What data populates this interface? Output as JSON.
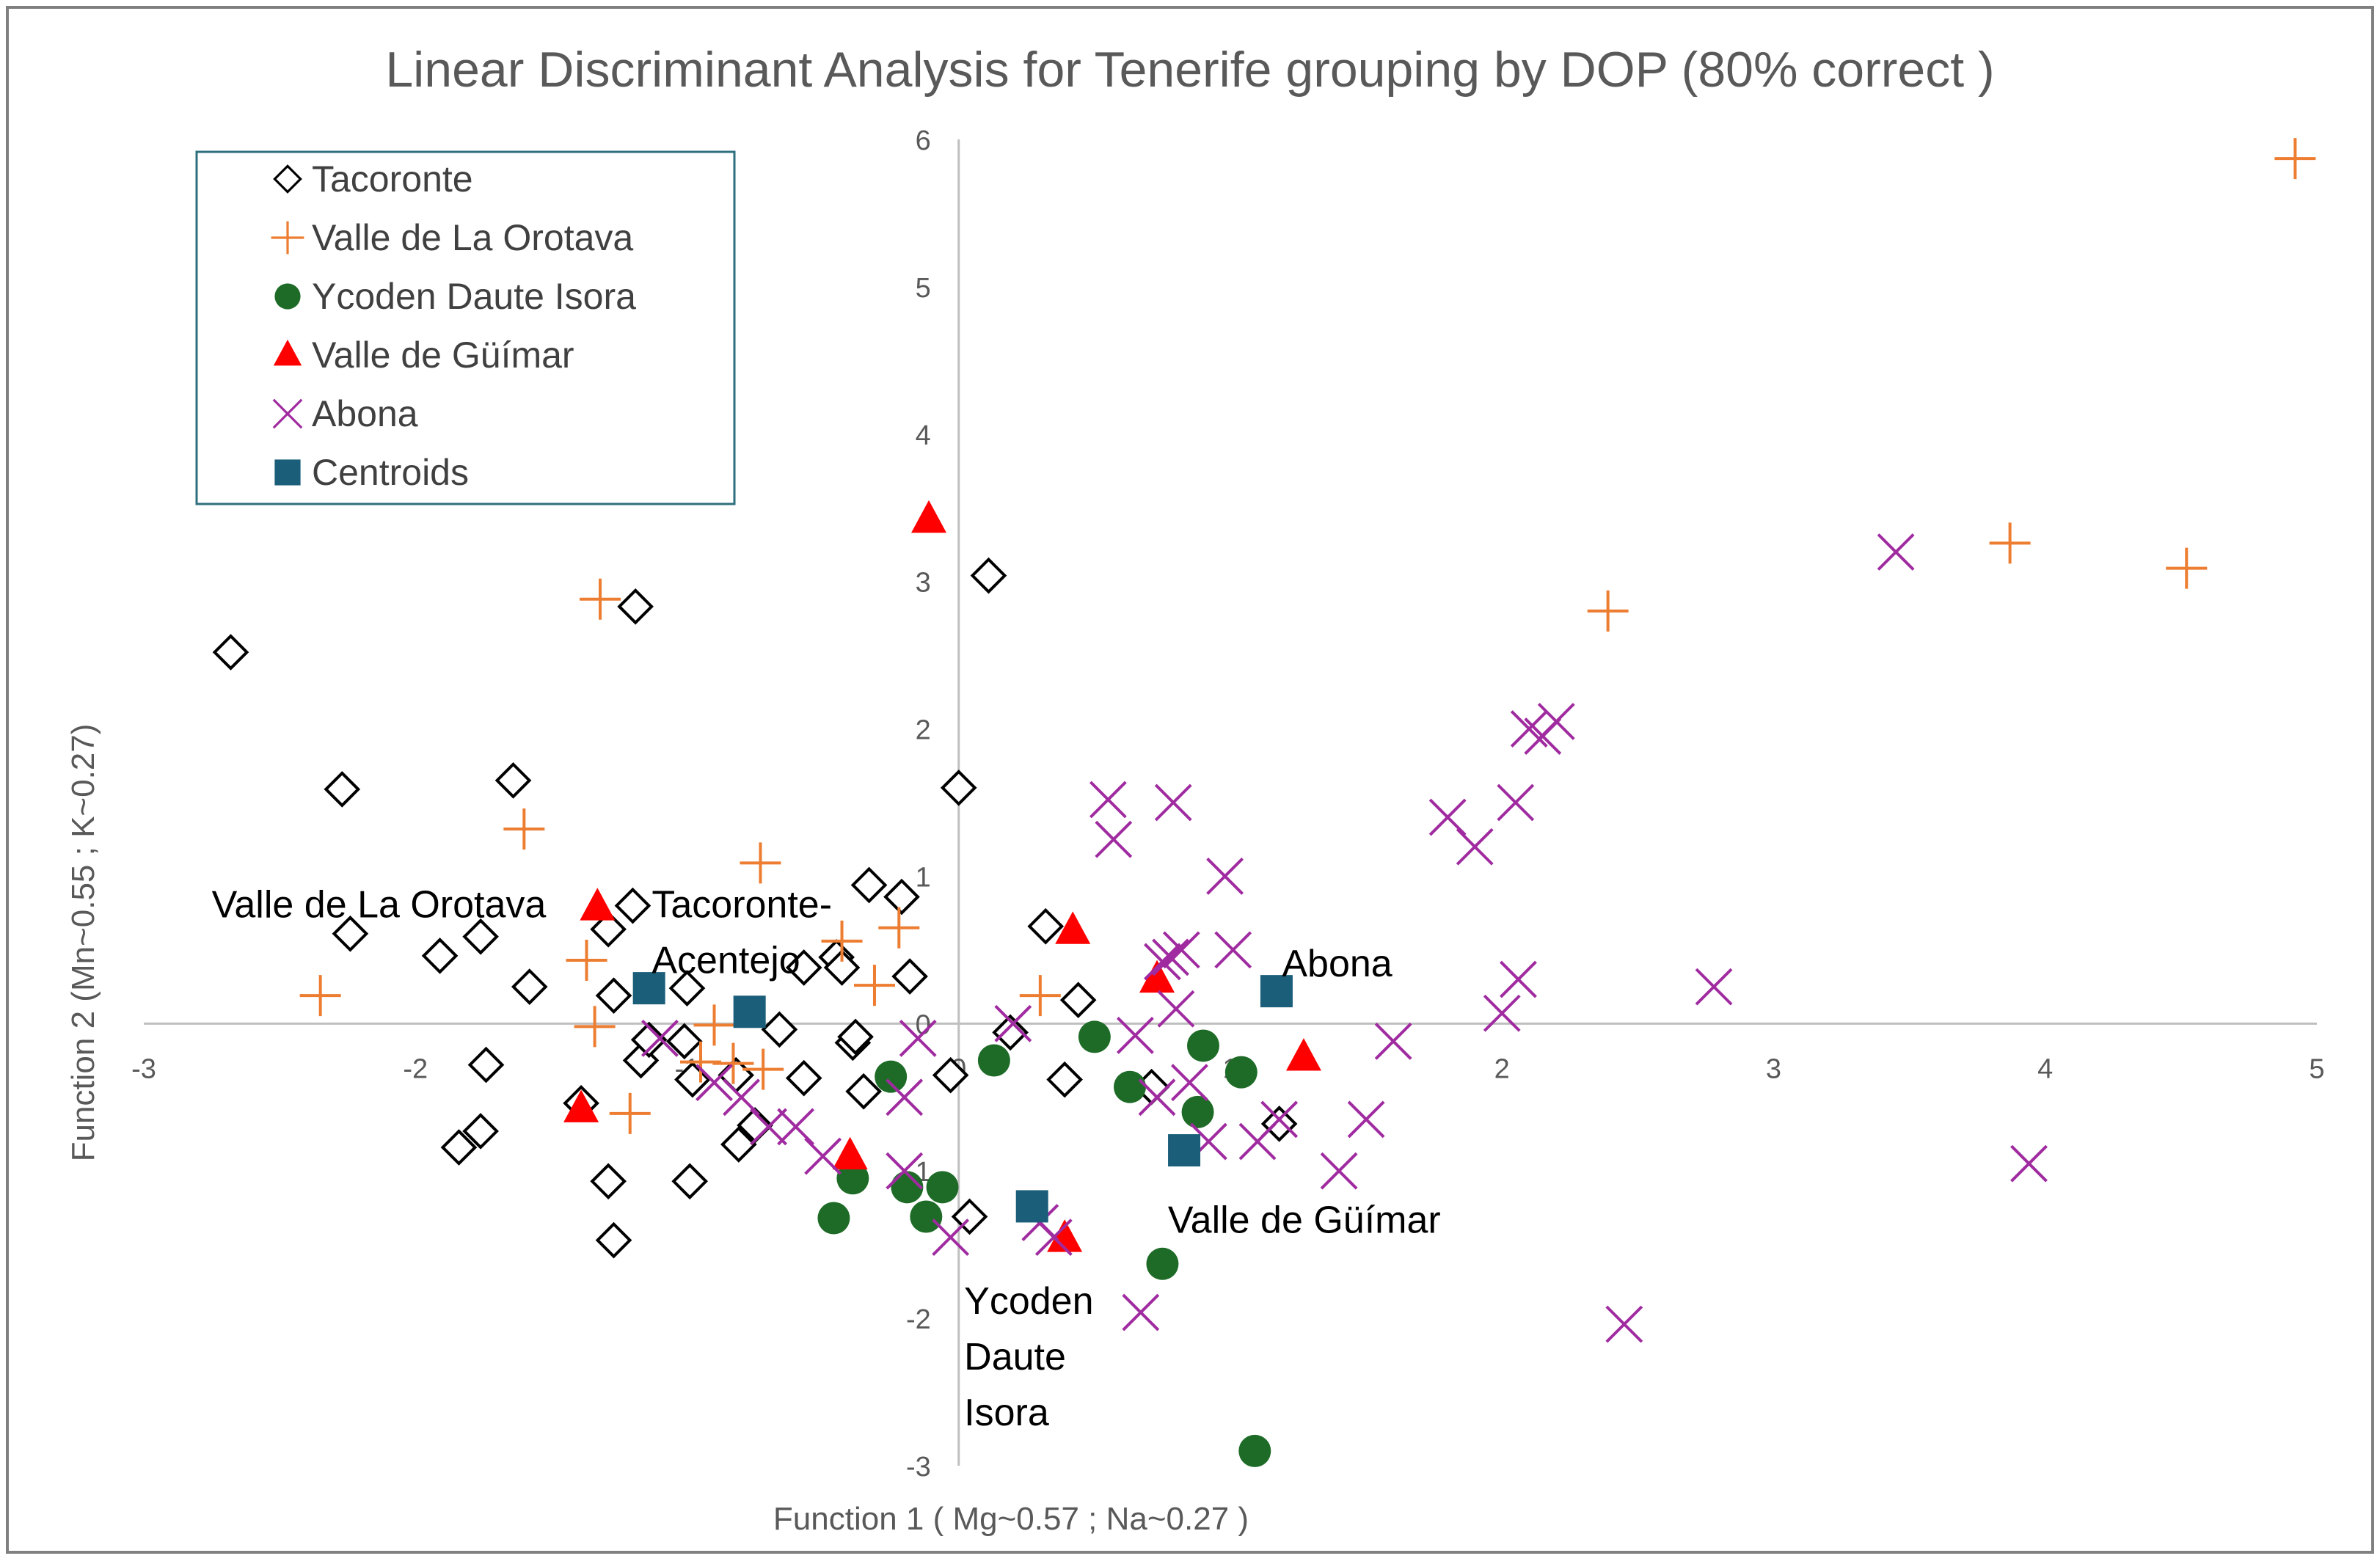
{
  "chart_data": {
    "type": "scatter",
    "title": "Linear Discriminant Analysis for Tenerife grouping by DOP (80% correct )",
    "xlabel": "Function 1   ( Mg~0.57 ; Na~0.27 )",
    "ylabel": "Function 2   (Mn~0.55 ;   K~0.27)",
    "xlim": [
      -3,
      5
    ],
    "ylim": [
      -3,
      6
    ],
    "x_ticks": [
      "-3",
      "-2",
      "-1",
      "0",
      "1",
      "2",
      "3",
      "4",
      "5"
    ],
    "y_ticks": [
      "-3",
      "-2",
      "-1",
      "0",
      "1",
      "2",
      "3",
      "4",
      "5",
      "6"
    ],
    "x_tick_values": [
      -3,
      -2,
      -1,
      0,
      1,
      2,
      3,
      4,
      5
    ],
    "y_tick_values": [
      -3,
      -2,
      -1,
      0,
      1,
      2,
      3,
      4,
      5,
      6
    ],
    "grid": false,
    "legend_position": "top-left",
    "colors": {
      "tacoronte": "#000000",
      "orotava": "#ED7D31",
      "ycoden": "#1E6B27",
      "guimar": "#FF0000",
      "abona": "#A02BA0",
      "centroids": "#1A5E7A",
      "legend_border": "#2E6F7E",
      "axis": "#BFBFBF",
      "frame": "#808080"
    },
    "series": [
      {
        "name": "Tacoronte",
        "marker": "diamond-open",
        "points": [
          [
            -2.68,
            2.52
          ],
          [
            -2.27,
            1.59
          ],
          [
            -2.24,
            0.61
          ],
          [
            -1.91,
            0.46
          ],
          [
            -1.76,
            0.59
          ],
          [
            -1.64,
            1.65
          ],
          [
            -1.58,
            0.25
          ],
          [
            -1.74,
            -0.28
          ],
          [
            -1.84,
            -0.84
          ],
          [
            -1.76,
            -0.73
          ],
          [
            -1.39,
            -0.54
          ],
          [
            -1.29,
            -1.07
          ],
          [
            -1.27,
            -1.47
          ],
          [
            -1.29,
            0.64
          ],
          [
            -1.2,
            0.8
          ],
          [
            -1.19,
            2.83
          ],
          [
            -1.27,
            0.19
          ],
          [
            -1.17,
            -0.25
          ],
          [
            -1.14,
            -0.11
          ],
          [
            -1.0,
            0.24
          ],
          [
            -1.01,
            -0.12
          ],
          [
            -0.98,
            -0.38
          ],
          [
            -0.99,
            -1.07
          ],
          [
            -0.82,
            -0.35
          ],
          [
            -0.81,
            -0.82
          ],
          [
            -0.75,
            -0.69
          ],
          [
            -0.66,
            -0.04
          ],
          [
            -0.57,
            -0.37
          ],
          [
            -0.57,
            0.38
          ],
          [
            -0.45,
            0.45
          ],
          [
            -0.43,
            0.38
          ],
          [
            -0.39,
            -0.13
          ],
          [
            -0.38,
            -0.09
          ],
          [
            -0.35,
            -0.46
          ],
          [
            -0.33,
            0.94
          ],
          [
            -0.21,
            0.86
          ],
          [
            -0.18,
            0.32
          ],
          [
            -0.03,
            -0.35
          ],
          [
            0.0,
            1.6
          ],
          [
            0.11,
            3.04
          ],
          [
            0.19,
            -0.06
          ],
          [
            0.32,
            0.66
          ],
          [
            0.44,
            0.16
          ],
          [
            0.39,
            -0.38
          ],
          [
            0.71,
            -0.43
          ],
          [
            1.18,
            -0.68
          ],
          [
            0.04,
            -1.31
          ]
        ]
      },
      {
        "name": "Valle de La Orotava",
        "marker": "plus",
        "points": [
          [
            -2.35,
            0.19
          ],
          [
            -1.6,
            1.32
          ],
          [
            -1.32,
            2.88
          ],
          [
            -1.37,
            0.43
          ],
          [
            -1.34,
            -0.02
          ],
          [
            -1.21,
            -0.61
          ],
          [
            -0.95,
            -0.26
          ],
          [
            -0.9,
            -0.01
          ],
          [
            -0.83,
            -0.27
          ],
          [
            -0.72,
            -0.31
          ],
          [
            -0.73,
            1.09
          ],
          [
            -0.43,
            0.56
          ],
          [
            -0.31,
            0.26
          ],
          [
            -0.22,
            0.65
          ],
          [
            0.3,
            0.19
          ],
          [
            2.39,
            2.8
          ],
          [
            3.87,
            3.26
          ],
          [
            4.52,
            3.09
          ],
          [
            4.92,
            5.87
          ]
        ]
      },
      {
        "name": "Ycoden Daute Isora",
        "marker": "circle-filled",
        "points": [
          [
            -0.46,
            -1.32
          ],
          [
            -0.39,
            -1.05
          ],
          [
            -0.25,
            -0.36
          ],
          [
            -0.19,
            -1.11
          ],
          [
            -0.12,
            -1.31
          ],
          [
            -0.06,
            -1.11
          ],
          [
            0.13,
            -0.25
          ],
          [
            0.5,
            -0.09
          ],
          [
            0.63,
            -0.43
          ],
          [
            0.75,
            -1.63
          ],
          [
            0.88,
            -0.6
          ],
          [
            0.9,
            -0.15
          ],
          [
            1.04,
            -0.33
          ],
          [
            1.09,
            -2.9
          ]
        ]
      },
      {
        "name": "Valle de Güímar",
        "marker": "triangle-filled",
        "points": [
          [
            -1.33,
            0.79
          ],
          [
            -1.39,
            -0.58
          ],
          [
            -0.4,
            -0.9
          ],
          [
            -0.11,
            3.42
          ],
          [
            0.39,
            -1.46
          ],
          [
            0.42,
            0.63
          ],
          [
            0.73,
            0.3
          ],
          [
            1.27,
            -0.23
          ]
        ]
      },
      {
        "name": "Abona",
        "marker": "x",
        "points": [
          [
            -1.1,
            -0.1
          ],
          [
            -0.9,
            -0.4
          ],
          [
            -0.8,
            -0.5
          ],
          [
            -0.7,
            -0.7
          ],
          [
            -0.6,
            -0.7
          ],
          [
            -0.5,
            -0.9
          ],
          [
            -0.2,
            -1.0
          ],
          [
            -0.2,
            -0.5
          ],
          [
            -0.15,
            -0.1
          ],
          [
            -0.03,
            -1.45
          ],
          [
            0.2,
            0.0
          ],
          [
            0.3,
            -1.35
          ],
          [
            0.35,
            -1.45
          ],
          [
            0.55,
            1.52
          ],
          [
            0.57,
            1.25
          ],
          [
            0.65,
            -0.08
          ],
          [
            0.67,
            -1.96
          ],
          [
            0.73,
            -0.5
          ],
          [
            0.75,
            0.42
          ],
          [
            0.78,
            0.45
          ],
          [
            0.8,
            0.1
          ],
          [
            0.79,
            1.5
          ],
          [
            0.82,
            0.5
          ],
          [
            0.85,
            -0.4
          ],
          [
            0.92,
            -0.8
          ],
          [
            0.98,
            1.0
          ],
          [
            1.01,
            0.5
          ],
          [
            1.1,
            -0.8
          ],
          [
            1.18,
            -0.65
          ],
          [
            1.4,
            -1.0
          ],
          [
            1.5,
            -0.65
          ],
          [
            1.6,
            -0.12
          ],
          [
            1.8,
            1.4
          ],
          [
            1.9,
            1.2
          ],
          [
            2.0,
            0.07
          ],
          [
            2.06,
            0.3
          ],
          [
            2.05,
            1.5
          ],
          [
            2.1,
            2.0
          ],
          [
            2.15,
            1.95
          ],
          [
            2.2,
            2.05
          ],
          [
            2.45,
            -2.04
          ],
          [
            2.78,
            0.25
          ],
          [
            3.45,
            3.2
          ],
          [
            3.94,
            -0.95
          ]
        ]
      },
      {
        "name": "Centroids",
        "marker": "square-filled",
        "points": [
          [
            -1.14,
            0.24
          ],
          [
            -0.77,
            0.08
          ],
          [
            0.27,
            -1.24
          ],
          [
            0.83,
            -0.86
          ],
          [
            1.17,
            0.22
          ]
        ]
      }
    ],
    "annotations": [
      {
        "lines": [
          "Valle de La Orotava"
        ],
        "x": -2.75,
        "y": 0.72
      },
      {
        "lines": [
          "Tacoronte-",
          "Acentejo"
        ],
        "x": -1.13,
        "y": 0.72
      },
      {
        "lines": [
          "Abona"
        ],
        "x": 1.19,
        "y": 0.32
      },
      {
        "lines": [
          "Valle de Güímar"
        ],
        "x": 0.77,
        "y": -1.42
      },
      {
        "lines": [
          "Ycoden",
          "Daute",
          "Isora"
        ],
        "x": 0.02,
        "y": -1.97
      }
    ]
  }
}
